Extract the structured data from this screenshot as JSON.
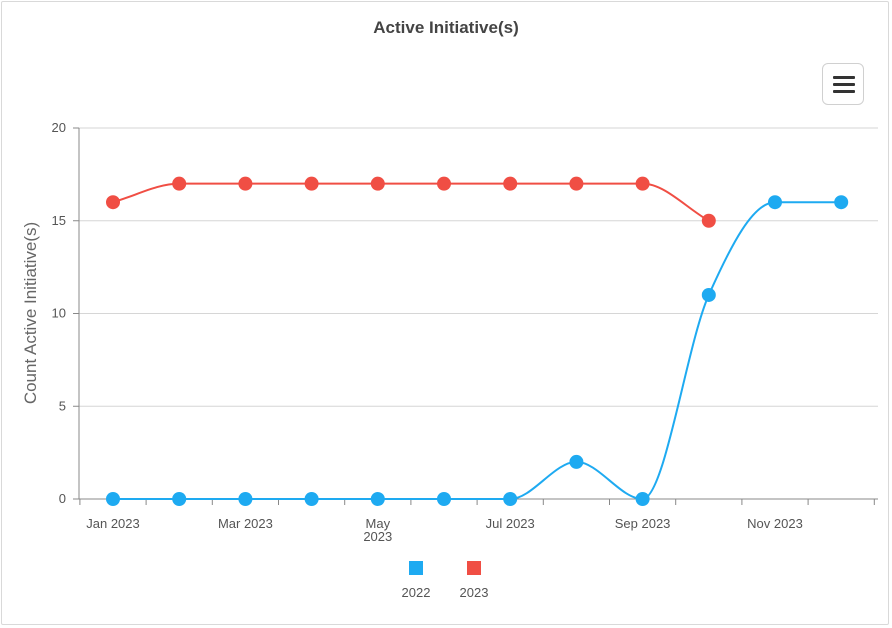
{
  "menu": {
    "icon": "hamburger-menu-icon"
  },
  "chart_data": {
    "type": "line",
    "title": "Active Initiative(s)",
    "xlabel": "",
    "ylabel": "Count Active Initiative(s)",
    "ylim": [
      0,
      20
    ],
    "yticks": [
      "0",
      "5",
      "10",
      "15",
      "20"
    ],
    "x": [
      "Jan 2023",
      "Feb 2023",
      "Mar 2023",
      "Apr 2023",
      "May 2023",
      "Jun 2023",
      "Jul 2023",
      "Aug 2023",
      "Sep 2023",
      "Oct 2023",
      "Nov 2023",
      "Dec 2023"
    ],
    "xtick_labels": [
      {
        "index": 0,
        "lines": [
          "Jan 2023"
        ]
      },
      {
        "index": 2,
        "lines": [
          "Mar 2023"
        ]
      },
      {
        "index": 4,
        "lines": [
          "May",
          "2023"
        ]
      },
      {
        "index": 6,
        "lines": [
          "Jul 2023"
        ]
      },
      {
        "index": 8,
        "lines": [
          "Sep 2023"
        ]
      },
      {
        "index": 10,
        "lines": [
          "Nov 2023"
        ]
      }
    ],
    "grid": true,
    "legend_position": "bottom",
    "series": [
      {
        "name": "2022",
        "color": "#1eaaf1",
        "values": [
          0,
          0,
          0,
          0,
          0,
          0,
          0,
          2,
          0,
          11,
          16,
          16
        ]
      },
      {
        "name": "2023",
        "color": "#f04e44",
        "values": [
          16,
          17,
          17,
          17,
          17,
          17,
          17,
          17,
          17,
          15,
          null,
          null
        ]
      }
    ]
  }
}
